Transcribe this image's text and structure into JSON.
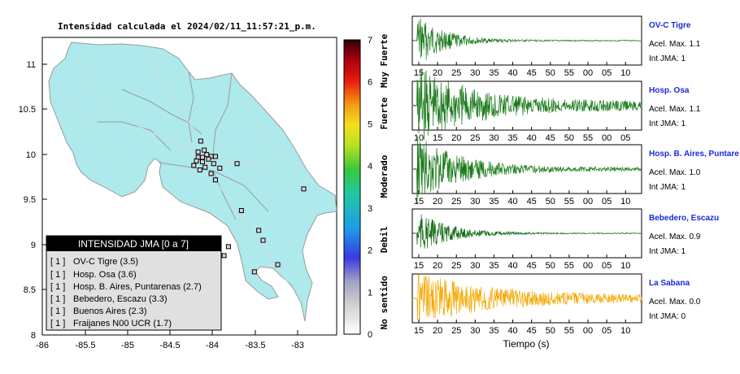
{
  "chart_data": [
    {
      "type": "map",
      "title": "Intensidad calculada el 2024/02/11_11:57:21_p.m.",
      "xlim": [
        -86,
        -82.6
      ],
      "ylim": [
        8,
        11.3
      ],
      "x_ticks": [
        "-86",
        "-85.5",
        "-85",
        "-84.5",
        "-84",
        "-83.5",
        "-83"
      ],
      "y_ticks": [
        "8",
        "8.5",
        "9",
        "9.5",
        "10",
        "10.5",
        "11"
      ],
      "colors": {
        "land": "#aee9ec",
        "border": "#a0a0a0",
        "station_fill": "#d8d0d8"
      },
      "stations": [
        {
          "lon": -84.17,
          "lat": 10.15
        },
        {
          "lon": -84.13,
          "lat": 10.05
        },
        {
          "lon": -84.2,
          "lat": 10.03
        },
        {
          "lon": -84.1,
          "lat": 10.0
        },
        {
          "lon": -84.05,
          "lat": 9.98
        },
        {
          "lon": -84.0,
          "lat": 9.98
        },
        {
          "lon": -84.15,
          "lat": 9.97
        },
        {
          "lon": -84.2,
          "lat": 9.97
        },
        {
          "lon": -84.08,
          "lat": 9.95
        },
        {
          "lon": -84.22,
          "lat": 9.93
        },
        {
          "lon": -84.15,
          "lat": 9.92
        },
        {
          "lon": -84.02,
          "lat": 9.9
        },
        {
          "lon": -84.25,
          "lat": 9.88
        },
        {
          "lon": -84.12,
          "lat": 9.86
        },
        {
          "lon": -83.95,
          "lat": 9.85
        },
        {
          "lon": -84.18,
          "lat": 9.83
        },
        {
          "lon": -83.75,
          "lat": 9.9
        },
        {
          "lon": -84.05,
          "lat": 9.79
        },
        {
          "lon": -84.0,
          "lat": 9.72
        },
        {
          "lon": -83.7,
          "lat": 9.38
        },
        {
          "lon": -83.5,
          "lat": 9.16
        },
        {
          "lon": -83.45,
          "lat": 9.05
        },
        {
          "lon": -83.85,
          "lat": 8.98
        },
        {
          "lon": -83.55,
          "lat": 8.7
        },
        {
          "lon": -83.28,
          "lat": 8.78
        },
        {
          "lon": -83.9,
          "lat": 8.88
        },
        {
          "lon": -82.98,
          "lat": 9.62
        }
      ],
      "legend": {
        "title": "INTENSIDAD JMA [0 a 7]",
        "entries": [
          {
            "level": "[ 1 ]",
            "station": "OV-C Tigre (3.5)"
          },
          {
            "level": "[ 1 ]",
            "station": "Hosp. Osa (3.6)"
          },
          {
            "level": "[ 1 ]",
            "station": "Hosp. B. Aires, Puntarenas (2.7)"
          },
          {
            "level": "[ 1 ]",
            "station": "Bebedero, Escazu (3.3)"
          },
          {
            "level": "[ 1 ]",
            "station": "Buenos Aires (2.3)"
          },
          {
            "level": "[ 1 ]",
            "station": "Fraijanes N00 UCR (1.7)"
          }
        ]
      }
    },
    {
      "type": "colorbar",
      "range": [
        0,
        7
      ],
      "ticks": [
        "0",
        "1",
        "2",
        "3",
        "4",
        "5",
        "6",
        "7"
      ],
      "categories": [
        {
          "label": "No sentido",
          "from": 0,
          "to": 1.5
        },
        {
          "label": "Debil",
          "from": 1.5,
          "to": 3
        },
        {
          "label": "Moderado",
          "from": 3,
          "to": 4.5
        },
        {
          "label": "Fuerte",
          "from": 4.5,
          "to": 6
        },
        {
          "label": "Muy Fuerte",
          "from": 6,
          "to": 7
        }
      ]
    },
    {
      "type": "line",
      "xlabel": "Tiempo (s)",
      "series": [
        {
          "name": "OV-C Tigre",
          "acel": "Acel. Max. 1.1",
          "jma": "Int JMA: 1",
          "color": "#1a7a1a",
          "ticks": [
            "15",
            "20",
            "25",
            "30",
            "35",
            "40",
            "45",
            "50",
            "55",
            "00",
            "05",
            "10"
          ],
          "tick_start": 15,
          "env": "decay",
          "amp": 0.55,
          "tau": 0.12,
          "floor": 0.02
        },
        {
          "name": "Hosp. Osa",
          "acel": "Acel. Max. 1.1",
          "jma": "Int JMA: 1",
          "color": "#1a7a1a",
          "ticks": [
            "10",
            "15",
            "20",
            "25",
            "30",
            "35",
            "40",
            "45",
            "50",
            "55",
            "00",
            "05"
          ],
          "tick_start": 10,
          "env": "decay",
          "amp": 0.85,
          "tau": 0.25,
          "floor": 0.1
        },
        {
          "name": "Hosp. B. Aires, Puntare",
          "acel": "Acel. Max. 1.0",
          "jma": "Int JMA: 1",
          "color": "#1a7a1a",
          "ticks": [
            "15",
            "20",
            "25",
            "30",
            "35",
            "40",
            "45",
            "50",
            "55",
            "00",
            "05",
            "10"
          ],
          "tick_start": 15,
          "env": "decay",
          "amp": 0.75,
          "tau": 0.18,
          "floor": 0.05
        },
        {
          "name": "Bebedero, Escazu",
          "acel": "Acel. Max. 0.9",
          "jma": "Int JMA: 1",
          "color": "#0f6a0f",
          "ticks": [
            "15",
            "20",
            "25",
            "30",
            "35",
            "40",
            "45",
            "50",
            "55",
            "00",
            "05",
            "10"
          ],
          "tick_start": 12,
          "env": "decay",
          "amp": 0.45,
          "tau": 0.14,
          "floor": 0.02
        },
        {
          "name": "La Sabana",
          "acel": "Acel. Max. 0.0",
          "jma": "Int JMA: 0",
          "color": "#f5a800",
          "ticks": [
            "15",
            "20",
            "25",
            "30",
            "35",
            "40",
            "45",
            "50",
            "55",
            "00",
            "05",
            "10"
          ],
          "tick_start": 12,
          "env": "decay",
          "amp": 0.55,
          "tau": 0.35,
          "floor": 0.1
        }
      ]
    }
  ]
}
